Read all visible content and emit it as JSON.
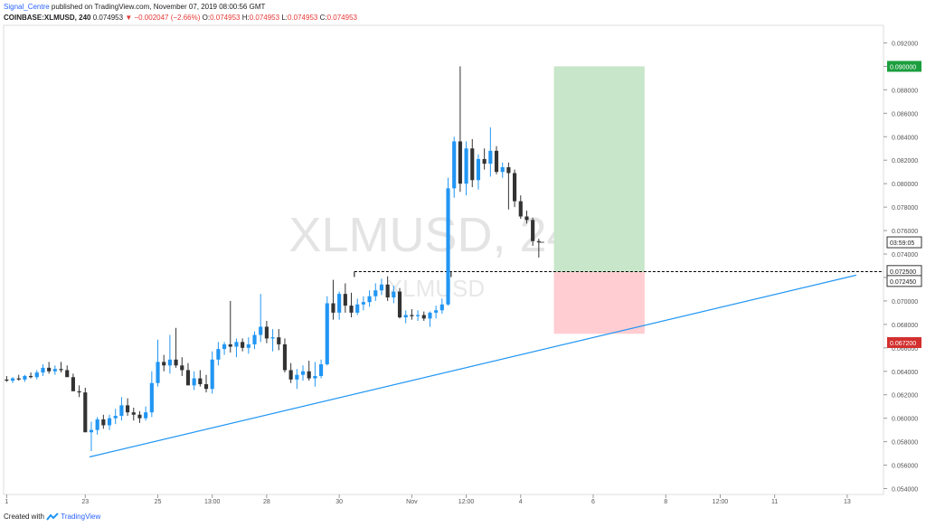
{
  "header": {
    "author": "Signal_Centre",
    "published": " published on TradingView.com, November 07, 2019 08:00:56 GMT",
    "symbol": "COINBASE:XLMUSD, 240",
    "last": "0.074953",
    "change": "▼ −0.002047 (−2.66%)",
    "o_label": "O:",
    "o_value": "0.074953",
    "h_label": "H:",
    "h_value": "0.074953",
    "l_label": "L:",
    "l_value": "0.074953",
    "c_label": "C:",
    "c_value": "0.074953"
  },
  "watermark": {
    "main": "XLMUSD, 240",
    "sub": "XLMUSD"
  },
  "footer": {
    "created_with": "Created with",
    "brand": "TradingView"
  },
  "colors": {
    "up": "#2196f3",
    "down": "#333333",
    "trendline": "#2196f3",
    "target_fill": "#c8e6c9",
    "stop_fill": "#ffcdd2",
    "target_label": "#1b9e3e",
    "stop_label": "#d32f2f",
    "grid": "#eeeeee"
  },
  "chart_data": {
    "type": "candlestick",
    "title": "XLMUSD, 240",
    "y_ticks": [
      "0.092000",
      "0.090000",
      "0.088000",
      "0.086000",
      "0.084000",
      "0.082000",
      "0.080000",
      "0.078000",
      "0.076000",
      "0.074000",
      "0.072000",
      "0.070000",
      "0.068000",
      "0.066000",
      "0.064000",
      "0.062000",
      "0.060000",
      "0.058000",
      "0.056000",
      "0.054000"
    ],
    "ylim": [
      0.0535,
      0.0935
    ],
    "x_ticks": [
      {
        "label": "1",
        "bar": 0
      },
      {
        "label": "23",
        "bar": 13
      },
      {
        "label": "25",
        "bar": 25
      },
      {
        "label": "13:00",
        "bar": 34
      },
      {
        "label": "28",
        "bar": 43
      },
      {
        "label": "30",
        "bar": 55
      },
      {
        "label": "Nov",
        "bar": 67
      },
      {
        "label": "12:00",
        "bar": 76
      },
      {
        "label": "4",
        "bar": 85
      },
      {
        "label": "6",
        "bar": 97
      },
      {
        "label": "8",
        "bar": 109
      },
      {
        "label": "12:00",
        "bar": 118
      },
      {
        "label": "11",
        "bar": 127
      },
      {
        "label": "13",
        "bar": 139
      }
    ],
    "xlim": [
      -0.5,
      145
    ],
    "candles": [
      [
        0.0633,
        0.0636,
        0.0631,
        0.0632
      ],
      [
        0.0632,
        0.0635,
        0.063,
        0.0634
      ],
      [
        0.0634,
        0.0637,
        0.0632,
        0.0633
      ],
      [
        0.0633,
        0.0637,
        0.0631,
        0.0636
      ],
      [
        0.0636,
        0.0639,
        0.0634,
        0.0635
      ],
      [
        0.0635,
        0.0641,
        0.0633,
        0.0639
      ],
      [
        0.0639,
        0.0646,
        0.0636,
        0.0643
      ],
      [
        0.0643,
        0.0648,
        0.0638,
        0.064
      ],
      [
        0.064,
        0.0645,
        0.0637,
        0.0642
      ],
      [
        0.0642,
        0.0648,
        0.0639,
        0.0641
      ],
      [
        0.0641,
        0.0645,
        0.0636,
        0.0635
      ],
      [
        0.0635,
        0.0638,
        0.0626,
        0.0623
      ],
      [
        0.0623,
        0.0628,
        0.0618,
        0.0622
      ],
      [
        0.0622,
        0.0626,
        0.059,
        0.0588
      ],
      [
        0.0588,
        0.0597,
        0.0572,
        0.059
      ],
      [
        0.059,
        0.0601,
        0.0586,
        0.0599
      ],
      [
        0.0599,
        0.0603,
        0.0591,
        0.0594
      ],
      [
        0.0594,
        0.0603,
        0.059,
        0.06
      ],
      [
        0.06,
        0.0608,
        0.0595,
        0.0602
      ],
      [
        0.0602,
        0.0618,
        0.0598,
        0.0611
      ],
      [
        0.0611,
        0.0617,
        0.0602,
        0.0605
      ],
      [
        0.0605,
        0.0609,
        0.0598,
        0.0603
      ],
      [
        0.0603,
        0.0606,
        0.0596,
        0.06
      ],
      [
        0.06,
        0.061,
        0.0598,
        0.0605
      ],
      [
        0.0605,
        0.064,
        0.0601,
        0.063
      ],
      [
        0.063,
        0.0667,
        0.0627,
        0.0648
      ],
      [
        0.0648,
        0.0654,
        0.064,
        0.0645
      ],
      [
        0.0645,
        0.0671,
        0.0638,
        0.065
      ],
      [
        0.065,
        0.0677,
        0.0643,
        0.0645
      ],
      [
        0.0645,
        0.0652,
        0.0636,
        0.0641
      ],
      [
        0.0641,
        0.0647,
        0.063,
        0.0628
      ],
      [
        0.0628,
        0.064,
        0.0624,
        0.0634
      ],
      [
        0.0634,
        0.0641,
        0.0627,
        0.0629
      ],
      [
        0.0629,
        0.0637,
        0.0622,
        0.0625
      ],
      [
        0.0625,
        0.0657,
        0.0621,
        0.065
      ],
      [
        0.065,
        0.0665,
        0.0645,
        0.0659
      ],
      [
        0.0659,
        0.0665,
        0.0654,
        0.0663
      ],
      [
        0.0663,
        0.07,
        0.0656,
        0.0661
      ],
      [
        0.0661,
        0.0668,
        0.0652,
        0.0665
      ],
      [
        0.0665,
        0.0668,
        0.0657,
        0.066
      ],
      [
        0.066,
        0.0669,
        0.0655,
        0.0663
      ],
      [
        0.0663,
        0.0674,
        0.0659,
        0.0671
      ],
      [
        0.0671,
        0.0706,
        0.0665,
        0.0678
      ],
      [
        0.0678,
        0.0683,
        0.0664,
        0.0668
      ],
      [
        0.0668,
        0.0676,
        0.0657,
        0.0669
      ],
      [
        0.0669,
        0.0676,
        0.0658,
        0.0663
      ],
      [
        0.0663,
        0.0668,
        0.0639,
        0.0641
      ],
      [
        0.0641,
        0.0647,
        0.063,
        0.0633
      ],
      [
        0.0633,
        0.0642,
        0.0625,
        0.0637
      ],
      [
        0.0637,
        0.0645,
        0.0632,
        0.064
      ],
      [
        0.064,
        0.0649,
        0.0632,
        0.0634
      ],
      [
        0.0634,
        0.0648,
        0.0627,
        0.0636
      ],
      [
        0.0636,
        0.065,
        0.0634,
        0.0646
      ],
      [
        0.0646,
        0.0704,
        0.0645,
        0.0698
      ],
      [
        0.0698,
        0.0718,
        0.0684,
        0.069
      ],
      [
        0.069,
        0.0708,
        0.0684,
        0.0706
      ],
      [
        0.0706,
        0.0715,
        0.069,
        0.0696
      ],
      [
        0.0696,
        0.0707,
        0.0686,
        0.069
      ],
      [
        0.069,
        0.0702,
        0.0688,
        0.0697
      ],
      [
        0.0697,
        0.0704,
        0.0692,
        0.0699
      ],
      [
        0.0699,
        0.0709,
        0.0695,
        0.0704
      ],
      [
        0.0704,
        0.0715,
        0.07,
        0.0709
      ],
      [
        0.0709,
        0.0719,
        0.0705,
        0.0714
      ],
      [
        0.0714,
        0.0721,
        0.07,
        0.0703
      ],
      [
        0.0703,
        0.0713,
        0.0698,
        0.0708
      ],
      [
        0.0708,
        0.0711,
        0.0685,
        0.0686
      ],
      [
        0.0686,
        0.0692,
        0.0681,
        0.0688
      ],
      [
        0.0688,
        0.0693,
        0.0684,
        0.0687
      ],
      [
        0.0687,
        0.0692,
        0.0683,
        0.0688
      ],
      [
        0.0688,
        0.0691,
        0.0683,
        0.0685
      ],
      [
        0.0685,
        0.0691,
        0.0678,
        0.069
      ],
      [
        0.069,
        0.0696,
        0.0685,
        0.0692
      ],
      [
        0.0692,
        0.0702,
        0.0689,
        0.0697
      ],
      [
        0.0697,
        0.0805,
        0.0696,
        0.0796
      ],
      [
        0.0796,
        0.084,
        0.0788,
        0.0836
      ],
      [
        0.0836,
        0.09,
        0.0793,
        0.08
      ],
      [
        0.08,
        0.0836,
        0.079,
        0.083
      ],
      [
        0.083,
        0.0838,
        0.0797,
        0.0803
      ],
      [
        0.0803,
        0.0825,
        0.0795,
        0.0821
      ],
      [
        0.0821,
        0.083,
        0.0812,
        0.0817
      ],
      [
        0.0817,
        0.0848,
        0.0806,
        0.0828
      ],
      [
        0.0828,
        0.0832,
        0.0808,
        0.081
      ],
      [
        0.081,
        0.0818,
        0.0805,
        0.0814
      ],
      [
        0.0814,
        0.0818,
        0.0778,
        0.0809
      ],
      [
        0.0809,
        0.0812,
        0.078,
        0.0785
      ],
      [
        0.0785,
        0.079,
        0.077,
        0.0772
      ],
      [
        0.0772,
        0.0777,
        0.0766,
        0.0769
      ],
      [
        0.0769,
        0.0771,
        0.0747,
        0.0751
      ],
      [
        0.0751,
        0.0753,
        0.0737,
        0.075
      ]
    ],
    "long_position": {
      "start_bar": 90.5,
      "end_bar": 105.5,
      "target": 0.09,
      "entry": 0.07245,
      "stop": 0.0672,
      "target_label": "0.090000",
      "entry_label": "0.072450",
      "stop_label": "0.067200"
    },
    "resistance_line": {
      "value": 0.0725,
      "start_bar": 57.5,
      "label": "0.072500"
    },
    "trendline": {
      "start": [
        13.7,
        0.0567
      ],
      "end": [
        140.5,
        0.0722
      ]
    },
    "current_price_label": "03:59:05",
    "current_price": 0.075
  }
}
